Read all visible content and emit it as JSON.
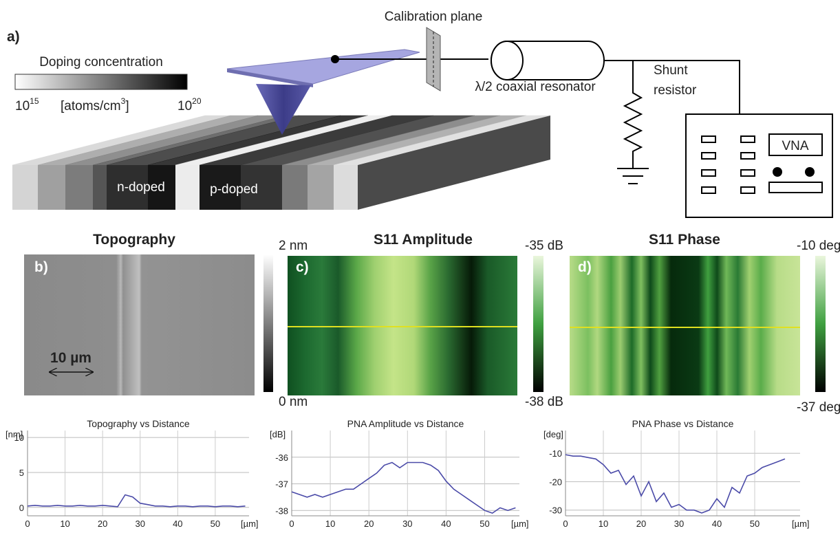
{
  "figure": {
    "panel_a": {
      "label": "a)",
      "colorbar_title": "Doping concentration",
      "colorbar_min": {
        "base": "10",
        "exponent": "15"
      },
      "colorbar_unit": {
        "prefix": "[atoms/cm",
        "exponent": "3",
        "suffix": "]"
      },
      "colorbar_max": {
        "base": "10",
        "exponent": "20"
      },
      "n_label": "n-doped",
      "p_label": "p-doped",
      "calibration": "Calibration plane",
      "resonator": "λ/2 coaxial resonator",
      "shunt": [
        "Shunt",
        "resistor"
      ],
      "vna": "VNA"
    },
    "panels": [
      {
        "label": "b)",
        "title": "Topography",
        "cbar_max": "2 nm",
        "cbar_min": "0 nm",
        "scale_bar": "10 µm"
      },
      {
        "label": "c)",
        "title": "S11 Amplitude",
        "cbar_max": "-35 dB",
        "cbar_min": "-38 dB"
      },
      {
        "label": "d)",
        "title": "S11 Phase",
        "cbar_max": "-10 deg",
        "cbar_min": "-37 deg"
      }
    ]
  },
  "chart_data": [
    {
      "type": "line",
      "title": "Topography vs Distance",
      "y_label": "[nm]",
      "x_label": "[µm]",
      "x": [
        0,
        2,
        4,
        6,
        8,
        10,
        12,
        14,
        16,
        18,
        20,
        22,
        24,
        26,
        28,
        30,
        32,
        34,
        36,
        38,
        40,
        42,
        44,
        46,
        48,
        50,
        52,
        54,
        56,
        58
      ],
      "values": [
        0.2,
        0.3,
        0.2,
        0.2,
        0.3,
        0.2,
        0.2,
        0.3,
        0.2,
        0.2,
        0.3,
        0.2,
        0.1,
        1.8,
        1.5,
        0.6,
        0.4,
        0.2,
        0.2,
        0.1,
        0.2,
        0.2,
        0.1,
        0.2,
        0.2,
        0.1,
        0.2,
        0.2,
        0.1,
        0.2
      ],
      "color": "#4a4aa8",
      "xlim": [
        0,
        59
      ],
      "xticks": [
        0,
        10,
        20,
        30,
        40,
        50
      ],
      "ylim": [
        -1.2,
        11
      ],
      "yticks": [
        0,
        5,
        10
      ],
      "grid": true
    },
    {
      "type": "line",
      "title": "PNA Amplitude vs Distance",
      "y_label": "[dB]",
      "x_label": "[µm]",
      "x": [
        0,
        2,
        4,
        6,
        8,
        10,
        12,
        14,
        16,
        18,
        20,
        22,
        24,
        26,
        28,
        30,
        32,
        34,
        36,
        38,
        40,
        42,
        44,
        46,
        48,
        50,
        52,
        54,
        56,
        58
      ],
      "values": [
        -37.3,
        -37.4,
        -37.5,
        -37.4,
        -37.5,
        -37.4,
        -37.3,
        -37.2,
        -37.2,
        -37.0,
        -36.8,
        -36.6,
        -36.3,
        -36.2,
        -36.4,
        -36.2,
        -36.2,
        -36.2,
        -36.3,
        -36.5,
        -36.9,
        -37.2,
        -37.4,
        -37.6,
        -37.8,
        -38.0,
        -38.1,
        -37.9,
        -38.0,
        -37.9
      ],
      "color": "#4a4aa8",
      "xlim": [
        0,
        59
      ],
      "xticks": [
        0,
        10,
        20,
        30,
        40,
        50
      ],
      "ylim": [
        -38.2,
        -35
      ],
      "yticks": [
        -38,
        -37,
        -36
      ],
      "grid": true
    },
    {
      "type": "line",
      "title": "PNA Phase vs Distance",
      "y_label": "[deg]",
      "x_label": "[µm]",
      "x": [
        0,
        2,
        4,
        6,
        8,
        10,
        12,
        14,
        16,
        18,
        20,
        22,
        24,
        26,
        28,
        30,
        32,
        34,
        36,
        38,
        40,
        42,
        44,
        46,
        48,
        50,
        52,
        54,
        56,
        58
      ],
      "values": [
        -10.5,
        -11,
        -11,
        -11.5,
        -12,
        -14,
        -17,
        -16,
        -21,
        -18,
        -25,
        -20,
        -27,
        -24,
        -29,
        -28,
        -30,
        -30,
        -31,
        -30,
        -26,
        -29,
        -22,
        -24,
        -18,
        -17,
        -15,
        -14,
        -13,
        -12
      ],
      "color": "#4a4aa8",
      "xlim": [
        0,
        62
      ],
      "xticks": [
        0,
        10,
        20,
        30,
        40,
        50
      ],
      "ylim": [
        -32,
        -2
      ],
      "yticks": [
        -30,
        -20,
        -10
      ],
      "grid": true
    }
  ]
}
